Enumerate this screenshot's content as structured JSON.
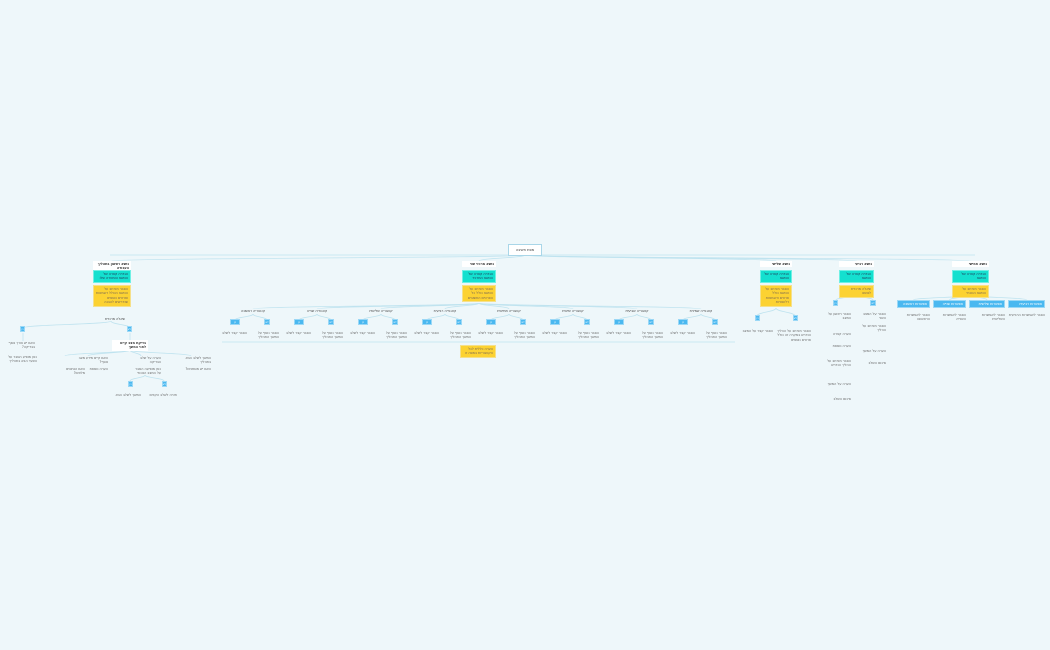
{
  "root": "מפת חשיבה",
  "colors": {
    "background": "#eef7fa",
    "teal": "#14e0cf",
    "yellow": "#fcd232",
    "blue": "#4ab8f0",
    "line": "#bfe3ef"
  },
  "branches": [
    {
      "title": "נושא ראשון בתהליך העבודה",
      "teal": "הגדרה קצרה של הנושא והמטרה שלו",
      "yellow": "הסבר מורחב על הנושא הכולל דוגמאות ופרטים נוספים שנדרשים להבנה",
      "label": "שאלה מרכזית",
      "a": {
        "tag": "כן",
        "texts": [
          "האם יש צורך נוסף בבדיקה?",
          "כאן מופיע הסבר על הצעד הבא בתהליך"
        ]
      },
      "b": {
        "tag": "לא",
        "title": "בדיקת מצב קיים לפני המשך",
        "children": [
          "מצב",
          "האם קיים מידע נוסף?",
          "הערה על שלב הבדיקה",
          "המשך לשלב הבא בתהליך"
        ],
        "texts": [
          "האם הנתונים מלאים?",
          "הערה נוספת",
          "כאן מופיעה הסבר על המצב הנוכחי",
          "האם יש מסמכים?"
        ],
        "sub": {
          "yes": "כן",
          "no": "לא",
          "yes_text": "המשך לשלב הבא",
          "no_text": "חזרה לשלב הקודם"
        }
      }
    },
    {
      "title": "נושא מרכזי שני",
      "teal": "הגדרה קצרה של הנושא המרכזי",
      "yellow": "הסבר מורחב על הנושא כולל כל הפרטים החשובים",
      "groups": [
        {
          "label": "קטגוריה ראשונה",
          "yes": "כן",
          "no": "לא",
          "t1": "הסבר קצר לשלב",
          "t2": "הסבר נוסף על המשך התהליך"
        },
        {
          "label": "קטגוריה שנייה",
          "yes": "כן",
          "no": "לא",
          "t1": "הסבר קצר לשלב",
          "t2": "הסבר נוסף על המשך התהליך"
        },
        {
          "label": "קטגוריה שלישית",
          "yes": "כן",
          "no": "לא",
          "t1": "הסבר קצר לשלב",
          "t2": "הסבר נוסף על המשך התהליך"
        },
        {
          "label": "קטגוריה רביעית",
          "yes": "כן",
          "no": "לא",
          "t1": "הסבר קצר לשלב",
          "t2": "הסבר נוסף על המשך התהליך"
        },
        {
          "label": "קטגוריה חמישית",
          "yes": "כן",
          "no": "לא",
          "t1": "הסבר קצר לשלב",
          "t2": "הסבר נוסף על המשך התהליך"
        },
        {
          "label": "קטגוריה שישית",
          "yes": "כן",
          "no": "לא",
          "t1": "הסבר קצר לשלב",
          "t2": "הסבר נוסף על המשך התהליך"
        },
        {
          "label": "קטגוריה שביעית",
          "yes": "כן",
          "no": "לא",
          "t1": "הסבר קצר לשלב",
          "t2": "הסבר נוסף על המשך התהליך"
        },
        {
          "label": "קטגוריה שמינית",
          "yes": "כן",
          "no": "לא",
          "t1": "הסבר קצר לשלב",
          "t2": "הסבר נוסף על המשך התהליך"
        }
      ],
      "note": "הערה כללית לכל הקטגוריות במפה זו"
    },
    {
      "title": "נושא שלישי",
      "teal": "הגדרה קצרה של הנושא",
      "yellow": "הסבר מורחב על הנושא כולל פרטים ודוגמאות רלוונטיות",
      "yes": "כן",
      "no": "לא",
      "t1": "הסבר קצר על המצב",
      "t2": "הסבר מורחב על ההליך הנדרש במקרה זה כולל פרטים נוספים"
    },
    {
      "title": "נושא רביעי",
      "teal": "הגדרה קצרה של הנושא",
      "yellow": "שאלה מרכזית לנושא",
      "yes": "כן",
      "no": "לא",
      "left": [
        "הסבר ראשון על המצב",
        "הערה קצרה",
        "הערה נוספת",
        "הסבר מורחב על ההליך הנדרש",
        "הערה על המשך",
        "סיכום השלב"
      ],
      "right": [
        "הסבר על המצב השני",
        "הסבר מורחב על ההליך",
        "הערה על המשך",
        "סיכום השלב"
      ]
    },
    {
      "title": "נושא חמישי",
      "teal": "הגדרה קצרה של הנושא",
      "yellow": "הסבר מורחב על הנושא הנוכחי",
      "boxes": [
        "אפשרות ראשונה",
        "אפשרות שנייה",
        "אפשרות שלישית",
        "אפשרות רביעית"
      ],
      "texts": [
        "הסבר לאפשרות הראשונה",
        "הסבר לאפשרות השנייה",
        "הסבר לאפשרות השלישית",
        "הסבר לאפשרות הרביעית"
      ]
    }
  ]
}
